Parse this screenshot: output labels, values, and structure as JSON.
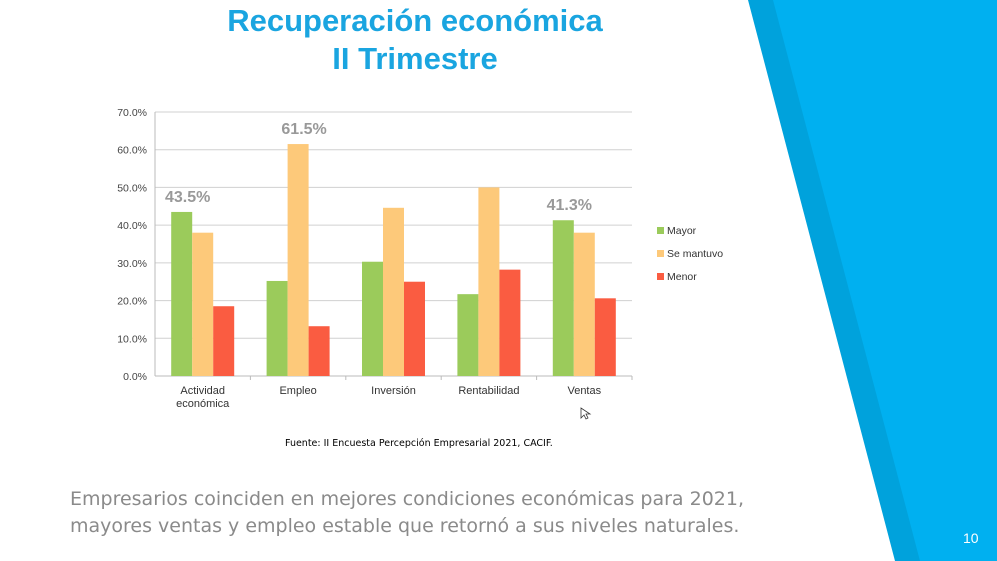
{
  "slide": {
    "title_line1": "Recuperación económica",
    "title_line2": "II Trimestre",
    "source": "Fuente: II Encuesta Percepción Empresarial 2021, CACIF.",
    "caption_line1": "Empresarios coinciden en mejores condiciones económicas para 2021,",
    "caption_line2": "mayores ventas y empleo estable que retornó a sus niveles naturales.",
    "page_number": "10",
    "colors": {
      "accent": "#00B0F0",
      "accent_dark": "#00A2DC",
      "title": "#1AA5E0"
    }
  },
  "chart_data": {
    "type": "bar",
    "title": "",
    "xlabel": "",
    "ylabel": "",
    "ylim": [
      0,
      70
    ],
    "yticks": [
      "0.0%",
      "10.0%",
      "20.0%",
      "30.0%",
      "40.0%",
      "50.0%",
      "60.0%",
      "70.0%"
    ],
    "grid": true,
    "legend_position": "right",
    "categories": [
      [
        "Actividad",
        "económica"
      ],
      [
        "Empleo"
      ],
      [
        "Inversión"
      ],
      [
        "Rentabilidad"
      ],
      [
        "Ventas"
      ]
    ],
    "series": [
      {
        "name": "Mayor",
        "color": "#9BCB5B",
        "values": [
          43.5,
          25.2,
          30.3,
          21.7,
          41.3
        ]
      },
      {
        "name": "Se mantuvo",
        "color": "#FDC97A",
        "values": [
          38.0,
          61.5,
          44.6,
          50.0,
          38.0
        ]
      },
      {
        "name": "Menor",
        "color": "#FA5C41",
        "values": [
          18.5,
          13.2,
          25.0,
          28.2,
          20.6
        ]
      }
    ],
    "annotations": [
      {
        "text": "43.5%",
        "category": 0,
        "series": 0
      },
      {
        "text": "61.5%",
        "category": 1,
        "series": 1
      },
      {
        "text": "41.3%",
        "category": 4,
        "series": 0
      }
    ]
  }
}
